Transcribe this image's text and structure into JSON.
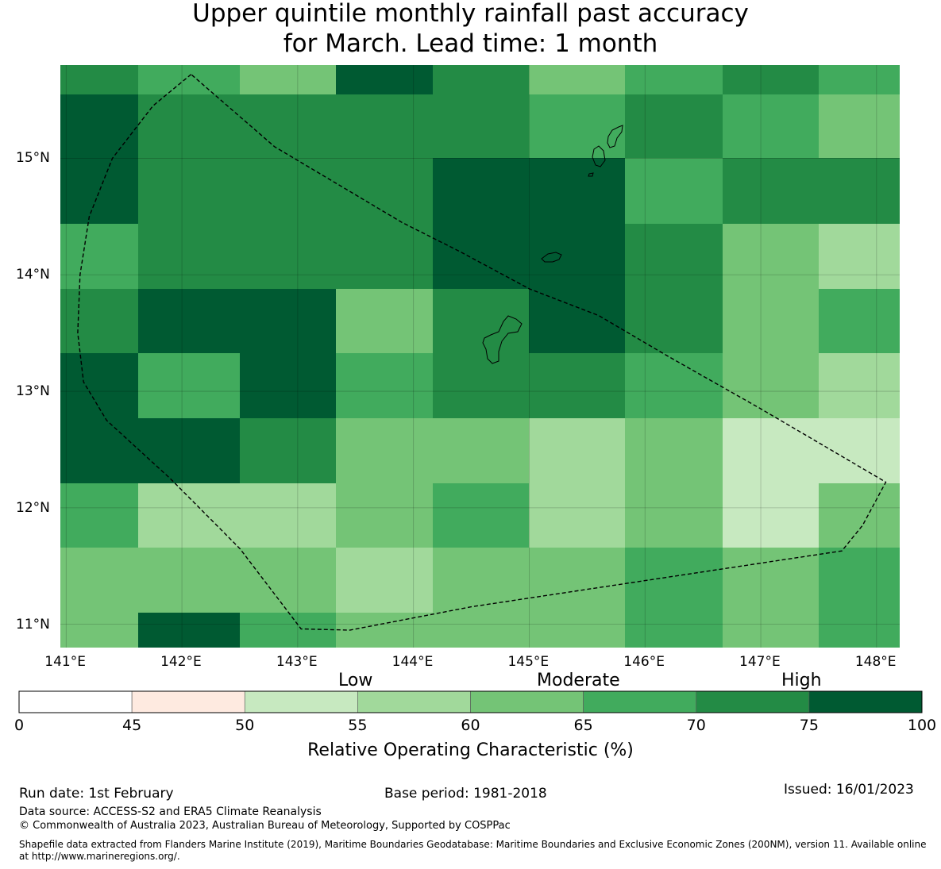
{
  "title": {
    "line1": "Upper quintile monthly rainfall past accuracy",
    "line2": "for March. Lead time: 1 month"
  },
  "map": {
    "lon_range": [
      140.95,
      148.2
    ],
    "lat_range": [
      10.8,
      15.8
    ],
    "lon_ticks": [
      141,
      142,
      143,
      144,
      145,
      146,
      147,
      148
    ],
    "lon_tick_labels": [
      "141°E",
      "142°E",
      "143°E",
      "144°E",
      "145°E",
      "146°E",
      "147°E",
      "148°E"
    ],
    "lat_ticks": [
      11,
      12,
      13,
      14,
      15
    ],
    "lat_tick_labels": [
      "11°N",
      "12°N",
      "13°N",
      "14°N",
      "15°N"
    ],
    "lon_edges": [
      140.95,
      141.62,
      142.5,
      143.33,
      144.17,
      145.0,
      145.83,
      146.67,
      147.5,
      148.2
    ],
    "lat_edges": [
      15.8,
      15.55,
      15.0,
      14.44,
      13.88,
      13.33,
      12.77,
      12.21,
      11.66,
      11.1,
      10.8
    ],
    "grid_roc_percent": [
      [
        72.5,
        67.5,
        62.5,
        77.5,
        72.5,
        62.5,
        67.5,
        72.5,
        67.5
      ],
      [
        77.5,
        72.5,
        72.5,
        72.5,
        72.5,
        67.5,
        72.5,
        67.5,
        62.5
      ],
      [
        77.5,
        72.5,
        72.5,
        72.5,
        77.5,
        77.5,
        67.5,
        72.5,
        72.5
      ],
      [
        67.5,
        72.5,
        72.5,
        72.5,
        77.5,
        77.5,
        72.5,
        62.5,
        57.5
      ],
      [
        72.5,
        77.5,
        77.5,
        62.5,
        72.5,
        77.5,
        72.5,
        62.5,
        67.5
      ],
      [
        77.5,
        67.5,
        77.5,
        67.5,
        72.5,
        72.5,
        67.5,
        62.5,
        57.5
      ],
      [
        77.5,
        77.5,
        72.5,
        62.5,
        62.5,
        57.5,
        62.5,
        52.5,
        52.5
      ],
      [
        67.5,
        57.5,
        57.5,
        62.5,
        67.5,
        57.5,
        62.5,
        52.5,
        62.5
      ],
      [
        62.5,
        62.5,
        62.5,
        57.5,
        62.5,
        62.5,
        67.5,
        62.5,
        67.5
      ],
      [
        62.5,
        77.5,
        67.5,
        62.5,
        62.5,
        62.5,
        67.5,
        62.5,
        67.5
      ]
    ],
    "eez_boundary": [
      [
        142.08,
        15.72
      ],
      [
        141.75,
        15.45
      ],
      [
        141.4,
        15.0
      ],
      [
        141.2,
        14.5
      ],
      [
        141.12,
        14.0
      ],
      [
        141.1,
        13.5
      ],
      [
        141.15,
        13.08
      ],
      [
        141.35,
        12.75
      ],
      [
        141.9,
        12.25
      ],
      [
        142.5,
        11.65
      ],
      [
        143.03,
        10.96
      ],
      [
        143.45,
        10.95
      ],
      [
        144.5,
        11.15
      ],
      [
        145.5,
        11.3
      ],
      [
        146.5,
        11.45
      ],
      [
        147.7,
        11.63
      ],
      [
        147.88,
        11.85
      ],
      [
        148.08,
        12.22
      ],
      [
        147.6,
        12.5
      ],
      [
        147.0,
        12.85
      ],
      [
        146.2,
        13.3
      ],
      [
        145.6,
        13.65
      ],
      [
        145.0,
        13.88
      ],
      [
        144.4,
        14.2
      ],
      [
        143.9,
        14.45
      ],
      [
        142.8,
        15.1
      ],
      [
        142.08,
        15.72
      ]
    ]
  },
  "colorbar": {
    "boundaries": [
      0,
      45,
      50,
      55,
      60,
      65,
      70,
      75,
      100
    ],
    "tick_labels": [
      "0",
      "45",
      "50",
      "55",
      "60",
      "65",
      "70",
      "75",
      "100"
    ],
    "colors": [
      "#ffffff",
      "#feeae0",
      "#c7e9c0",
      "#a1d99b",
      "#74c476",
      "#41ab5d",
      "#238b45",
      "#005a32"
    ],
    "level_low": "Low",
    "level_moderate": "Moderate",
    "level_high": "High",
    "label": "Relative Operating Characteristic (%)"
  },
  "footer": {
    "run_date": "Run date: 1st February",
    "base_period": "Base period: 1981-2018",
    "issued": "Issued: 16/01/2023",
    "data_source": "Data source: ACCESS-S2 and ERA5 Climate Reanalysis",
    "copyright": "© Commonwealth of Australia 2023, Australian Bureau of Meteorology, Supported by COSPPac",
    "shapefile_line1": "Shapefile data extracted from Flanders Marine Institute (2019), Maritime Boundaries Geodatabase: Maritime Boundaries and Exclusive Economic Zones (200NM), version 11. Available online",
    "shapefile_line2": "at http://www.marineregions.org/."
  }
}
